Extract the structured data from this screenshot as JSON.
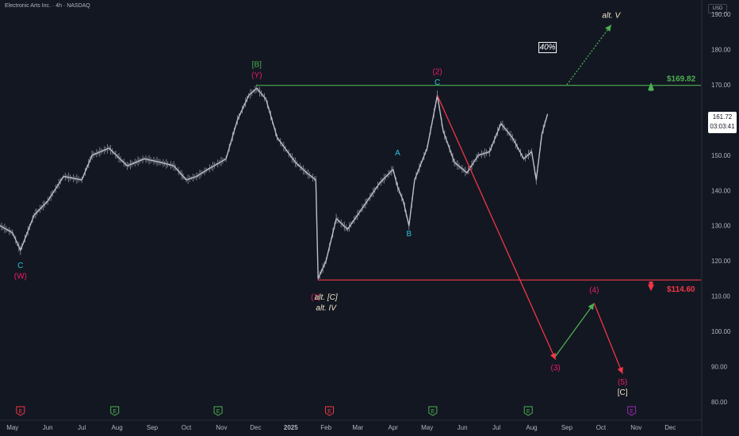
{
  "header": {
    "title": "Electronic Arts Inc. · 4h · NASDAQ",
    "currency": "USD"
  },
  "last_price": {
    "value": "161.72",
    "countdown": "03:03:41"
  },
  "colors": {
    "background": "#131722",
    "green": "#4caf50",
    "red": "#f23645",
    "magenta": "#e91e63",
    "cyan": "#26c6da",
    "cream": "#f0e6c8",
    "price": "#b2b5be"
  },
  "levels": {
    "resistance_label": "$169.82",
    "support_label": "$114.60"
  },
  "event_badges": {
    "earnings": "E"
  },
  "chart_data": {
    "type": "line",
    "ylim": [
      80,
      190
    ],
    "y_ticks": [
      80,
      90,
      100,
      110,
      120,
      130,
      140,
      150,
      160,
      170,
      180,
      190
    ],
    "y_tick_labels": [
      "80.00",
      "90.00",
      "100.00",
      "110.00",
      "120.00",
      "130.00",
      "140.00",
      "150.00",
      "160.00",
      "170.00",
      "180.00",
      "190.00"
    ],
    "xlim": [
      "2024-04-20",
      "2025-12-28"
    ],
    "x_ticks": [
      {
        "date": "2024-05-01",
        "label": "May"
      },
      {
        "date": "2024-06-01",
        "label": "Jun"
      },
      {
        "date": "2024-07-01",
        "label": "Jul"
      },
      {
        "date": "2024-08-01",
        "label": "Aug"
      },
      {
        "date": "2024-09-01",
        "label": "Sep"
      },
      {
        "date": "2024-10-01",
        "label": "Oct"
      },
      {
        "date": "2024-11-01",
        "label": "Nov"
      },
      {
        "date": "2024-12-01",
        "label": "Dec"
      },
      {
        "date": "2025-01-01",
        "label": "2025"
      },
      {
        "date": "2025-02-01",
        "label": "Feb"
      },
      {
        "date": "2025-03-01",
        "label": "Mar"
      },
      {
        "date": "2025-04-01",
        "label": "Apr"
      },
      {
        "date": "2025-05-01",
        "label": "May"
      },
      {
        "date": "2025-06-01",
        "label": "Jun"
      },
      {
        "date": "2025-07-01",
        "label": "Jul"
      },
      {
        "date": "2025-08-01",
        "label": "Aug"
      },
      {
        "date": "2025-09-01",
        "label": "Sep"
      },
      {
        "date": "2025-10-01",
        "label": "Oct"
      },
      {
        "date": "2025-11-01",
        "label": "Nov"
      },
      {
        "date": "2025-12-01",
        "label": "Dec"
      }
    ],
    "price_series": {
      "x": [
        "2024-04-20",
        "2024-05-01",
        "2024-05-08",
        "2024-05-20",
        "2024-06-01",
        "2024-06-15",
        "2024-07-01",
        "2024-07-10",
        "2024-07-25",
        "2024-08-10",
        "2024-08-25",
        "2024-09-08",
        "2024-09-20",
        "2024-10-01",
        "2024-10-10",
        "2024-10-20",
        "2024-11-05",
        "2024-11-15",
        "2024-11-25",
        "2024-12-02",
        "2024-12-10",
        "2024-12-20",
        "2025-01-05",
        "2025-01-15",
        "2025-01-23",
        "2025-01-25",
        "2025-02-01",
        "2025-02-10",
        "2025-02-20",
        "2025-03-05",
        "2025-03-20",
        "2025-04-01",
        "2025-04-05",
        "2025-04-10",
        "2025-04-15",
        "2025-04-20",
        "2025-05-01",
        "2025-05-10",
        "2025-05-15",
        "2025-05-25",
        "2025-06-05",
        "2025-06-15",
        "2025-06-25",
        "2025-07-05",
        "2025-07-15",
        "2025-07-25",
        "2025-08-01",
        "2025-08-05",
        "2025-08-10",
        "2025-08-15"
      ],
      "y": [
        130,
        128,
        123,
        133,
        137,
        144,
        143,
        150,
        152,
        147,
        149,
        148,
        147,
        143,
        144,
        146,
        149,
        160,
        167,
        169,
        166,
        155,
        148,
        145,
        143,
        115,
        120,
        132,
        129,
        135,
        142,
        146,
        141,
        137,
        130,
        143,
        152,
        167,
        157,
        148,
        145,
        150,
        151,
        159,
        155,
        149,
        151,
        143,
        156,
        161.72
      ]
    },
    "horizontal_lines": [
      {
        "name": "resistance",
        "value": 169.82,
        "from": "2024-12-02"
      },
      {
        "name": "support",
        "value": 114.6,
        "from": "2025-01-25"
      }
    ],
    "projections": [
      {
        "name": "bearish-down-1",
        "color": "red",
        "points": [
          [
            "2025-05-10",
            167
          ],
          [
            "2025-08-22",
            92
          ]
        ]
      },
      {
        "name": "bullish-retrace",
        "color": "green",
        "points": [
          [
            "2025-08-22",
            93
          ],
          [
            "2025-09-25",
            108
          ]
        ]
      },
      {
        "name": "bearish-down-2",
        "color": "red",
        "points": [
          [
            "2025-09-25",
            108
          ],
          [
            "2025-10-20",
            88
          ]
        ]
      },
      {
        "name": "alt-v-dotted",
        "color": "green",
        "dotted": true,
        "points": [
          [
            "2025-09-01",
            170
          ],
          [
            "2025-10-10",
            187
          ]
        ]
      }
    ],
    "annotations": [
      {
        "text": "C",
        "x": "2024-05-08",
        "y": 118,
        "color": "cyan"
      },
      {
        "text": "(W)",
        "x": "2024-05-08",
        "y": 115,
        "color": "magenta"
      },
      {
        "text": "[B]",
        "x": "2024-12-02",
        "y": 175,
        "color": "green"
      },
      {
        "text": "(Y)",
        "x": "2024-12-02",
        "y": 172,
        "color": "magenta"
      },
      {
        "text": "(1)",
        "x": "2025-01-23",
        "y": 109,
        "color": "magenta"
      },
      {
        "text": "alt. [C]",
        "x": "2025-02-01",
        "y": 109,
        "color": "cream",
        "italic": true
      },
      {
        "text": "alt. IV",
        "x": "2025-02-01",
        "y": 106,
        "color": "cream",
        "italic": true
      },
      {
        "text": "A",
        "x": "2025-04-05",
        "y": 150,
        "color": "cyan"
      },
      {
        "text": "B",
        "x": "2025-04-15",
        "y": 127,
        "color": "cyan"
      },
      {
        "text": "(2)",
        "x": "2025-05-10",
        "y": 173,
        "color": "magenta"
      },
      {
        "text": "C",
        "x": "2025-05-10",
        "y": 170,
        "color": "cyan"
      },
      {
        "text": "(3)",
        "x": "2025-08-22",
        "y": 89,
        "color": "magenta"
      },
      {
        "text": "(4)",
        "x": "2025-09-25",
        "y": 111,
        "color": "magenta"
      },
      {
        "text": "(5)",
        "x": "2025-10-20",
        "y": 85,
        "color": "magenta"
      },
      {
        "text": "[C]",
        "x": "2025-10-20",
        "y": 82,
        "color": "cream"
      },
      {
        "text": "alt. V",
        "x": "2025-10-10",
        "y": 189,
        "color": "cream",
        "italic": true
      },
      {
        "text": "40%",
        "x": "2025-08-15",
        "y": 180,
        "color": "white",
        "italic": true,
        "boxed": true
      }
    ],
    "events": [
      {
        "date": "2024-05-08",
        "type": "earnings-past"
      },
      {
        "date": "2024-07-30",
        "type": "earnings"
      },
      {
        "date": "2024-10-29",
        "type": "earnings"
      },
      {
        "date": "2025-02-04",
        "type": "earnings-past"
      },
      {
        "date": "2025-05-06",
        "type": "earnings"
      },
      {
        "date": "2025-07-29",
        "type": "earnings"
      },
      {
        "date": "2025-10-28",
        "type": "earnings-upcoming"
      }
    ]
  }
}
